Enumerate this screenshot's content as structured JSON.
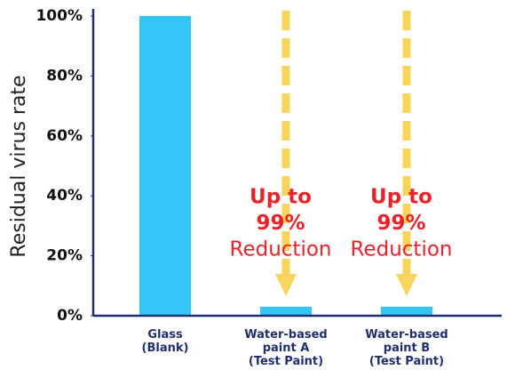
{
  "chart_data": {
    "type": "bar",
    "y_label": "Residual virus rate",
    "categories": [
      "Glass\n(Blank)",
      "Water-based\npaint A\n(Test Paint)",
      "Water-based\npaint B\n(Test Paint)"
    ],
    "values": [
      100,
      3,
      3
    ],
    "color": "#33c6f5",
    "ylim": [
      0,
      100
    ],
    "yticks": [
      {
        "value": 0,
        "label": "0%"
      },
      {
        "value": 20,
        "label": "20%"
      },
      {
        "value": 40,
        "label": "40%"
      },
      {
        "value": 60,
        "label": "60%"
      },
      {
        "value": 80,
        "label": "80%"
      },
      {
        "value": 100,
        "label": "100%"
      }
    ],
    "grid": false,
    "annotations": [
      {
        "category": 1,
        "lines": [
          "Up to",
          "99%",
          "Reduction"
        ]
      },
      {
        "category": 2,
        "lines": [
          "Up to",
          "99%",
          "Reduction"
        ]
      }
    ]
  }
}
